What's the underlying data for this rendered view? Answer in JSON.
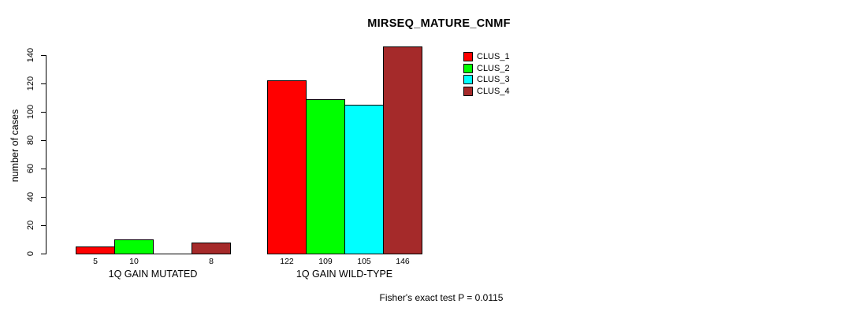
{
  "title": "MIRSEQ_MATURE_CNMF",
  "footer": "Fisher's exact test P = 0.0115",
  "colors": {
    "background": "#ffffff",
    "axis": "#000000",
    "clus_1": "#ff0000",
    "clus_2": "#00ff00",
    "clus_3": "#00ffff",
    "clus_4": "#a52a2a"
  },
  "chart_data": {
    "type": "bar",
    "title": "MIRSEQ_MATURE_CNMF",
    "xlabel": "",
    "ylabel": "number of cases",
    "ylim": [
      0,
      140
    ],
    "yticks": [
      0,
      20,
      40,
      60,
      80,
      100,
      120,
      140
    ],
    "grid": false,
    "legend_position": "top-right-inside",
    "categories": [
      "1Q GAIN MUTATED",
      "1Q GAIN WILD-TYPE"
    ],
    "series": [
      {
        "name": "CLUS_1",
        "color": "#ff0000",
        "values": [
          5,
          122
        ]
      },
      {
        "name": "CLUS_2",
        "color": "#00ff00",
        "values": [
          10,
          109
        ]
      },
      {
        "name": "CLUS_3",
        "color": "#00ffff",
        "values": [
          0,
          105
        ]
      },
      {
        "name": "CLUS_4",
        "color": "#a52a2a",
        "values": [
          8,
          146
        ]
      }
    ],
    "bar_value_labels": [
      [
        "5",
        "10",
        "",
        "8"
      ],
      [
        "122",
        "109",
        "105",
        "146"
      ]
    ],
    "annotation": "Fisher's exact test P = 0.0115"
  }
}
